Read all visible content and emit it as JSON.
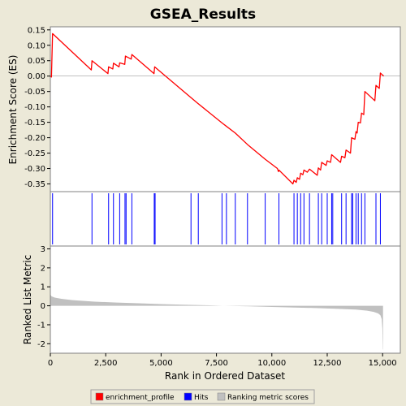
{
  "chart_data": {
    "type": "line",
    "title": "GSEA_Results",
    "xlabel": "Rank in Ordered Dataset",
    "x_ticks": [
      "0",
      "2,500",
      "5,000",
      "7,500",
      "10,000",
      "12,500",
      "15,000"
    ],
    "xlim": [
      0,
      15800
    ],
    "colors": {
      "enrichment_profile": "#ff0000",
      "hits": "#0000ff",
      "ranking": "#c0c0c0",
      "background": "#ece9d8",
      "plot_bg": "#ffffff"
    },
    "legend": {
      "placement": "bottom",
      "entries": [
        "enrichment_profile",
        "Hits",
        "Ranking metric scores"
      ]
    },
    "es_panel": {
      "ylabel": "Enrichment Score (ES)",
      "ylim": [
        -0.375,
        0.16
      ],
      "y_ticks": [
        0.15,
        0.1,
        0.05,
        0.0,
        -0.05,
        -0.1,
        -0.15,
        -0.2,
        -0.25,
        -0.3,
        -0.35
      ],
      "y_tick_labels": [
        "0.15",
        "0.10",
        "0.05",
        "0.00",
        "-0.05",
        "-0.10",
        "-0.15",
        "-0.20",
        "-0.25",
        "-0.30",
        "-0.35"
      ],
      "profile": [
        [
          0,
          0.0
        ],
        [
          50,
          -0.003
        ],
        [
          100,
          0.138
        ],
        [
          1850,
          0.02
        ],
        [
          1880,
          0.05
        ],
        [
          2600,
          0.008
        ],
        [
          2630,
          0.03
        ],
        [
          2820,
          0.023
        ],
        [
          2850,
          0.042
        ],
        [
          3100,
          0.03
        ],
        [
          3130,
          0.043
        ],
        [
          3360,
          0.038
        ],
        [
          3390,
          0.065
        ],
        [
          3650,
          0.055
        ],
        [
          3680,
          0.07
        ],
        [
          4680,
          0.008
        ],
        [
          4710,
          0.03
        ],
        [
          6350,
          -0.07
        ],
        [
          6650,
          -0.088
        ],
        [
          7750,
          -0.152
        ],
        [
          7950,
          -0.163
        ],
        [
          8350,
          -0.185
        ],
        [
          8900,
          -0.222
        ],
        [
          9700,
          -0.27
        ],
        [
          10250,
          -0.3
        ],
        [
          10300,
          -0.31
        ],
        [
          10320,
          -0.305
        ],
        [
          10950,
          -0.35
        ],
        [
          11000,
          -0.338
        ],
        [
          11100,
          -0.345
        ],
        [
          11150,
          -0.33
        ],
        [
          11250,
          -0.335
        ],
        [
          11300,
          -0.315
        ],
        [
          11400,
          -0.32
        ],
        [
          11450,
          -0.305
        ],
        [
          11600,
          -0.312
        ],
        [
          11700,
          -0.302
        ],
        [
          12050,
          -0.322
        ],
        [
          12100,
          -0.298
        ],
        [
          12200,
          -0.305
        ],
        [
          12250,
          -0.28
        ],
        [
          12450,
          -0.29
        ],
        [
          12500,
          -0.275
        ],
        [
          12650,
          -0.28
        ],
        [
          12700,
          -0.255
        ],
        [
          13100,
          -0.28
        ],
        [
          13150,
          -0.26
        ],
        [
          13300,
          -0.265
        ],
        [
          13350,
          -0.24
        ],
        [
          13550,
          -0.25
        ],
        [
          13600,
          -0.2
        ],
        [
          13750,
          -0.205
        ],
        [
          13800,
          -0.18
        ],
        [
          13850,
          -0.185
        ],
        [
          13900,
          -0.15
        ],
        [
          14000,
          -0.152
        ],
        [
          14050,
          -0.12
        ],
        [
          14150,
          -0.125
        ],
        [
          14200,
          -0.05
        ],
        [
          14650,
          -0.08
        ],
        [
          14700,
          -0.03
        ],
        [
          14850,
          -0.04
        ],
        [
          14900,
          0.01
        ],
        [
          15050,
          0.0
        ]
      ]
    },
    "hits_panel": {
      "positions": [
        100,
        1880,
        2630,
        2850,
        3130,
        3370,
        3420,
        3680,
        4690,
        4730,
        6350,
        6680,
        7750,
        7950,
        8350,
        8900,
        9700,
        10320,
        11000,
        11150,
        11300,
        11450,
        11700,
        12100,
        12250,
        12500,
        12700,
        12750,
        13150,
        13350,
        13600,
        13650,
        13800,
        13900,
        14050,
        14200,
        14700,
        14900
      ]
    },
    "ranking_panel": {
      "ylabel": "Ranked List Metric",
      "ylim": [
        -2.5,
        3.15
      ],
      "y_ticks": [
        3,
        2,
        1,
        0,
        -1,
        -2
      ],
      "y_tick_labels": [
        "3",
        "2",
        "1",
        "0",
        "-1",
        "-2"
      ],
      "metric": [
        [
          0,
          0.62
        ],
        [
          50,
          0.5
        ],
        [
          200,
          0.43
        ],
        [
          500,
          0.37
        ],
        [
          1000,
          0.3
        ],
        [
          2000,
          0.22
        ],
        [
          3000,
          0.17
        ],
        [
          4000,
          0.13
        ],
        [
          5000,
          0.09
        ],
        [
          6000,
          0.06
        ],
        [
          7000,
          0.03
        ],
        [
          7800,
          0.0
        ],
        [
          9000,
          -0.03
        ],
        [
          10000,
          -0.06
        ],
        [
          11000,
          -0.09
        ],
        [
          12000,
          -0.12
        ],
        [
          13000,
          -0.16
        ],
        [
          13800,
          -0.2
        ],
        [
          14300,
          -0.26
        ],
        [
          14600,
          -0.32
        ],
        [
          14800,
          -0.4
        ],
        [
          14900,
          -0.5
        ],
        [
          14960,
          -0.7
        ],
        [
          14990,
          -1.2
        ],
        [
          15010,
          -2.3
        ],
        [
          15020,
          -2.3
        ]
      ]
    }
  }
}
